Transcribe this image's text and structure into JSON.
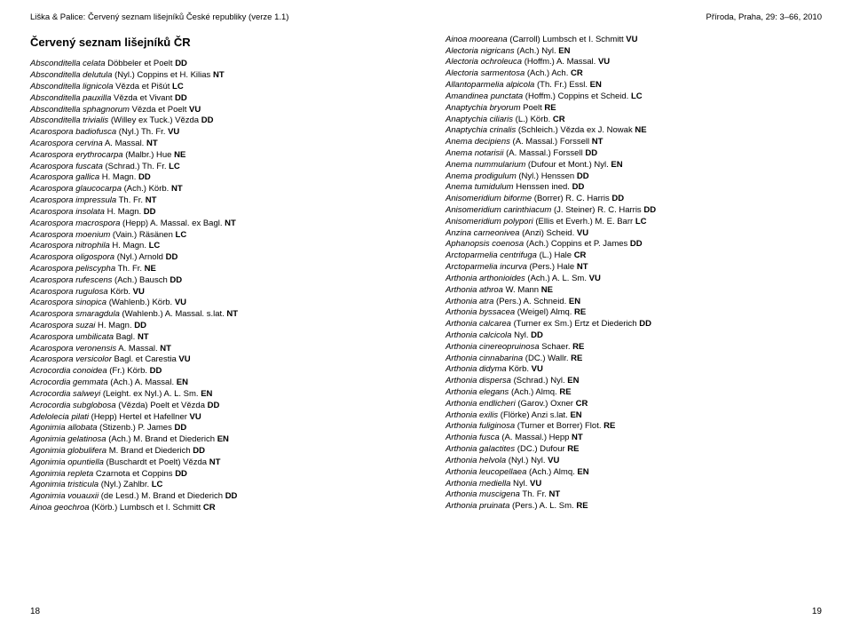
{
  "headerLeft": "Liška & Palice: Červený seznam lišejníků České republiky (verze 1.1)",
  "headerRight": "Příroda, Praha, 29: 3–66, 2010",
  "title": "Červený seznam lišejníků ČR",
  "pageNumLeft": "18",
  "pageNumRight": "19",
  "leftSpecies": [
    {
      "i": "Absconditella celata",
      "r": " Döbbeler et Poelt ",
      "s": "DD"
    },
    {
      "i": "Absconditella delutula",
      "r": " (Nyl.) Coppins et H. Kilias ",
      "s": "NT"
    },
    {
      "i": "Absconditella lignicola",
      "r": " Vězda et Pišút ",
      "s": "LC"
    },
    {
      "i": "Absconditella pauxilla",
      "r": " Vězda et Vivant ",
      "s": "DD"
    },
    {
      "i": "Absconditella sphagnorum",
      "r": " Vězda et Poelt ",
      "s": "VU"
    },
    {
      "i": "Absconditella trivialis",
      "r": " (Willey ex Tuck.) Vězda ",
      "s": "DD"
    },
    {
      "i": "Acarospora badiofusca",
      "r": " (Nyl.) Th. Fr. ",
      "s": "VU"
    },
    {
      "i": "Acarospora cervina",
      "r": " A. Massal. ",
      "s": "NT"
    },
    {
      "i": "Acarospora erythrocarpa",
      "r": " (Malbr.) Hue ",
      "s": "NE"
    },
    {
      "i": "Acarospora fuscata",
      "r": " (Schrad.) Th. Fr. ",
      "s": "LC"
    },
    {
      "i": "Acarospora gallica",
      "r": " H. Magn. ",
      "s": "DD"
    },
    {
      "i": "Acarospora glaucocarpa",
      "r": " (Ach.) Körb. ",
      "s": "NT"
    },
    {
      "i": "Acarospora impressula",
      "r": " Th. Fr. ",
      "s": "NT"
    },
    {
      "i": "Acarospora insolata",
      "r": " H. Magn. ",
      "s": "DD"
    },
    {
      "i": "Acarospora macrospora",
      "r": " (Hepp) A. Massal. ex Bagl. ",
      "s": "NT"
    },
    {
      "i": "Acarospora moenium",
      "r": " (Vain.) Räsänen ",
      "s": "LC"
    },
    {
      "i": "Acarospora nitrophila",
      "r": " H. Magn. ",
      "s": "LC"
    },
    {
      "i": "Acarospora oligospora",
      "r": " (Nyl.) Arnold ",
      "s": "DD"
    },
    {
      "i": "Acarospora peliscypha",
      "r": " Th. Fr. ",
      "s": "NE"
    },
    {
      "i": "Acarospora rufescens",
      "r": " (Ach.) Bausch ",
      "s": "DD"
    },
    {
      "i": "Acarospora rugulosa",
      "r": " Körb. ",
      "s": "VU"
    },
    {
      "i": "Acarospora sinopica",
      "r": " (Wahlenb.) Körb. ",
      "s": "VU"
    },
    {
      "i": "Acarospora smaragdula",
      "r": " (Wahlenb.) A. Massal. s.lat. ",
      "s": "NT"
    },
    {
      "i": "Acarospora suzai",
      "r": " H. Magn. ",
      "s": "DD"
    },
    {
      "i": "Acarospora umbilicata",
      "r": " Bagl. ",
      "s": "NT"
    },
    {
      "i": "Acarospora veronensis",
      "r": " A. Massal. ",
      "s": "NT"
    },
    {
      "i": "Acarospora versicolor",
      "r": " Bagl. et Carestia ",
      "s": "VU"
    },
    {
      "i": "Acrocordia conoidea",
      "r": " (Fr.) Körb. ",
      "s": "DD"
    },
    {
      "i": "Acrocordia gemmata",
      "r": " (Ach.) A. Massal. ",
      "s": "EN"
    },
    {
      "i": "Acrocordia salweyi",
      "r": " (Leight. ex Nyl.) A. L. Sm. ",
      "s": "EN"
    },
    {
      "i": "Acrocordia subglobosa",
      "r": " (Vězda) Poelt et Vězda ",
      "s": "DD"
    },
    {
      "i": "Adelolecia pilati",
      "r": " (Hepp) Hertel et Hafellner ",
      "s": "VU"
    },
    {
      "i": "Agonimia allobata",
      "r": " (Stizenb.) P. James ",
      "s": "DD"
    },
    {
      "i": "Agonimia gelatinosa",
      "r": " (Ach.) M. Brand et Diederich ",
      "s": "EN"
    },
    {
      "i": "Agonimia globulifera",
      "r": " M. Brand et Diederich ",
      "s": "DD"
    },
    {
      "i": "Agonimia opuntiella",
      "r": " (Buschardt et Poelt) Vězda ",
      "s": "NT"
    },
    {
      "i": "Agonimia repleta",
      "r": " Czarnota et Coppins ",
      "s": "DD"
    },
    {
      "i": "Agonimia tristicula",
      "r": " (Nyl.) Zahlbr. ",
      "s": "LC"
    },
    {
      "i": "Agonimia vouauxii",
      "r": " (de Lesd.) M. Brand et Diederich ",
      "s": "DD"
    },
    {
      "i": "Ainoa geochroa",
      "r": " (Körb.) Lumbsch et I. Schmitt ",
      "s": "CR"
    }
  ],
  "rightSpecies": [
    {
      "i": "Ainoa mooreana",
      "r": " (Carroll) Lumbsch et I. Schmitt ",
      "s": "VU"
    },
    {
      "i": "Alectoria nigricans",
      "r": " (Ach.) Nyl. ",
      "s": "EN"
    },
    {
      "i": "Alectoria ochroleuca",
      "r": " (Hoffm.) A. Massal. ",
      "s": "VU"
    },
    {
      "i": "Alectoria sarmentosa",
      "r": " (Ach.) Ach. ",
      "s": "CR"
    },
    {
      "i": "Allantoparmelia alpicola",
      "r": " (Th. Fr.) Essl. ",
      "s": "EN"
    },
    {
      "i": "Amandinea punctata",
      "r": " (Hoffm.) Coppins et Scheid. ",
      "s": "LC"
    },
    {
      "i": "Anaptychia bryorum",
      "r": " Poelt ",
      "s": "RE"
    },
    {
      "i": "Anaptychia ciliaris",
      "r": " (L.) Körb. ",
      "s": "CR"
    },
    {
      "i": "Anaptychia crinalis",
      "r": " (Schleich.) Vězda ex J. Nowak ",
      "s": "NE"
    },
    {
      "i": "Anema decipiens",
      "r": " (A. Massal.) Forssell ",
      "s": "NT"
    },
    {
      "i": "Anema notarisii",
      "r": " (A. Massal.) Forssell ",
      "s": "DD"
    },
    {
      "i": "Anema nummularium",
      "r": " (Dufour et Mont.) Nyl. ",
      "s": "EN"
    },
    {
      "i": "Anema prodigulum",
      "r": " (Nyl.) Henssen ",
      "s": "DD"
    },
    {
      "i": "Anema tumidulum",
      "r": " Henssen ined. ",
      "s": "DD"
    },
    {
      "i": "Anisomeridium biforme",
      "r": " (Borrer) R. C. Harris ",
      "s": "DD"
    },
    {
      "i": "Anisomeridium carinthiacum",
      "r": " (J. Steiner) R. C. Harris ",
      "s": "DD"
    },
    {
      "i": "Anisomeridium polypori",
      "r": " (Ellis et Everh.) M. E. Barr ",
      "s": "LC"
    },
    {
      "i": "Anzina carneonivea",
      "r": " (Anzi) Scheid. ",
      "s": "VU"
    },
    {
      "i": "Aphanopsis coenosa",
      "r": " (Ach.) Coppins et P. James ",
      "s": "DD"
    },
    {
      "i": "Arctoparmelia centrifuga",
      "r": " (L.) Hale ",
      "s": "CR"
    },
    {
      "i": "Arctoparmelia incurva",
      "r": " (Pers.) Hale ",
      "s": "NT"
    },
    {
      "i": "Arthonia arthonioides",
      "r": " (Ach.) A. L. Sm. ",
      "s": "VU"
    },
    {
      "i": "Arthonia athroa",
      "r": " W. Mann ",
      "s": "NE"
    },
    {
      "i": "Arthonia atra",
      "r": " (Pers.) A. Schneid. ",
      "s": "EN"
    },
    {
      "i": "Arthonia byssacea",
      "r": " (Weigel) Almq. ",
      "s": "RE"
    },
    {
      "i": "Arthonia calcarea",
      "r": " (Turner ex Sm.) Ertz et Diederich ",
      "s": "DD"
    },
    {
      "i": "Arthonia calcicola",
      "r": " Nyl. ",
      "s": "DD"
    },
    {
      "i": "Arthonia cinereopruinosa",
      "r": " Schaer. ",
      "s": "RE"
    },
    {
      "i": "Arthonia cinnabarina",
      "r": " (DC.) Wallr. ",
      "s": "RE"
    },
    {
      "i": "Arthonia didyma",
      "r": " Körb. ",
      "s": "VU"
    },
    {
      "i": "Arthonia dispersa",
      "r": " (Schrad.) Nyl. ",
      "s": "EN"
    },
    {
      "i": "Arthonia elegans",
      "r": " (Ach.) Almq. ",
      "s": "RE"
    },
    {
      "i": "Arthonia endlicheri",
      "r": " (Garov.) Oxner ",
      "s": "CR"
    },
    {
      "i": "Arthonia exilis",
      "r": " (Flörke) Anzi s.lat. ",
      "s": "EN"
    },
    {
      "i": "Arthonia fuliginosa",
      "r": " (Turner et Borrer) Flot. ",
      "s": "RE"
    },
    {
      "i": "Arthonia fusca",
      "r": " (A. Massal.) Hepp ",
      "s": "NT"
    },
    {
      "i": "Arthonia galactites",
      "r": " (DC.) Dufour ",
      "s": "RE"
    },
    {
      "i": "Arthonia helvola",
      "r": " (Nyl.) Nyl. ",
      "s": "VU"
    },
    {
      "i": "Arthonia leucopellaea",
      "r": " (Ach.) Almq. ",
      "s": "EN"
    },
    {
      "i": "Arthonia mediella",
      "r": " Nyl. ",
      "s": "VU"
    },
    {
      "i": "Arthonia muscigena",
      "r": " Th. Fr. ",
      "s": "NT"
    },
    {
      "i": "Arthonia pruinata",
      "r": " (Pers.) A. L. Sm. ",
      "s": "RE"
    }
  ]
}
